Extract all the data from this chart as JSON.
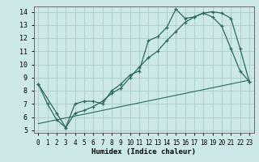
{
  "xlabel": "Humidex (Indice chaleur)",
  "bg_color": "#cce8e8",
  "grid_color": "#b0d0d0",
  "line_color": "#2a6b5e",
  "xlim": [
    -0.5,
    23.5
  ],
  "ylim": [
    4.8,
    14.4
  ],
  "xticks": [
    0,
    1,
    2,
    3,
    4,
    5,
    6,
    7,
    8,
    9,
    10,
    11,
    12,
    13,
    14,
    15,
    16,
    17,
    18,
    19,
    20,
    21,
    22,
    23
  ],
  "yticks": [
    5,
    6,
    7,
    8,
    9,
    10,
    11,
    12,
    13,
    14
  ],
  "line1_x": [
    0,
    1,
    2,
    3,
    4,
    5,
    6,
    7,
    8,
    9,
    10,
    11,
    12,
    13,
    14,
    15,
    16,
    17,
    18,
    19,
    20,
    21,
    22,
    23
  ],
  "line1_y": [
    8.5,
    7.0,
    5.8,
    5.2,
    7.0,
    7.2,
    7.2,
    7.0,
    8.0,
    8.5,
    9.2,
    9.5,
    11.8,
    12.1,
    12.8,
    14.2,
    13.5,
    13.6,
    13.9,
    13.6,
    12.9,
    11.2,
    9.5,
    8.7
  ],
  "line2_x": [
    0,
    2,
    3,
    4,
    5,
    6,
    7,
    8,
    9,
    10,
    11,
    12,
    13,
    14,
    15,
    16,
    17,
    18,
    19,
    20,
    21,
    22,
    23
  ],
  "line2_y": [
    8.5,
    6.3,
    5.2,
    6.3,
    6.5,
    6.8,
    7.2,
    7.8,
    8.2,
    9.0,
    9.8,
    10.5,
    11.0,
    11.8,
    12.5,
    13.2,
    13.6,
    13.9,
    14.0,
    13.9,
    13.5,
    11.2,
    8.7
  ],
  "line3_x": [
    0,
    23
  ],
  "line3_y": [
    5.5,
    8.8
  ]
}
